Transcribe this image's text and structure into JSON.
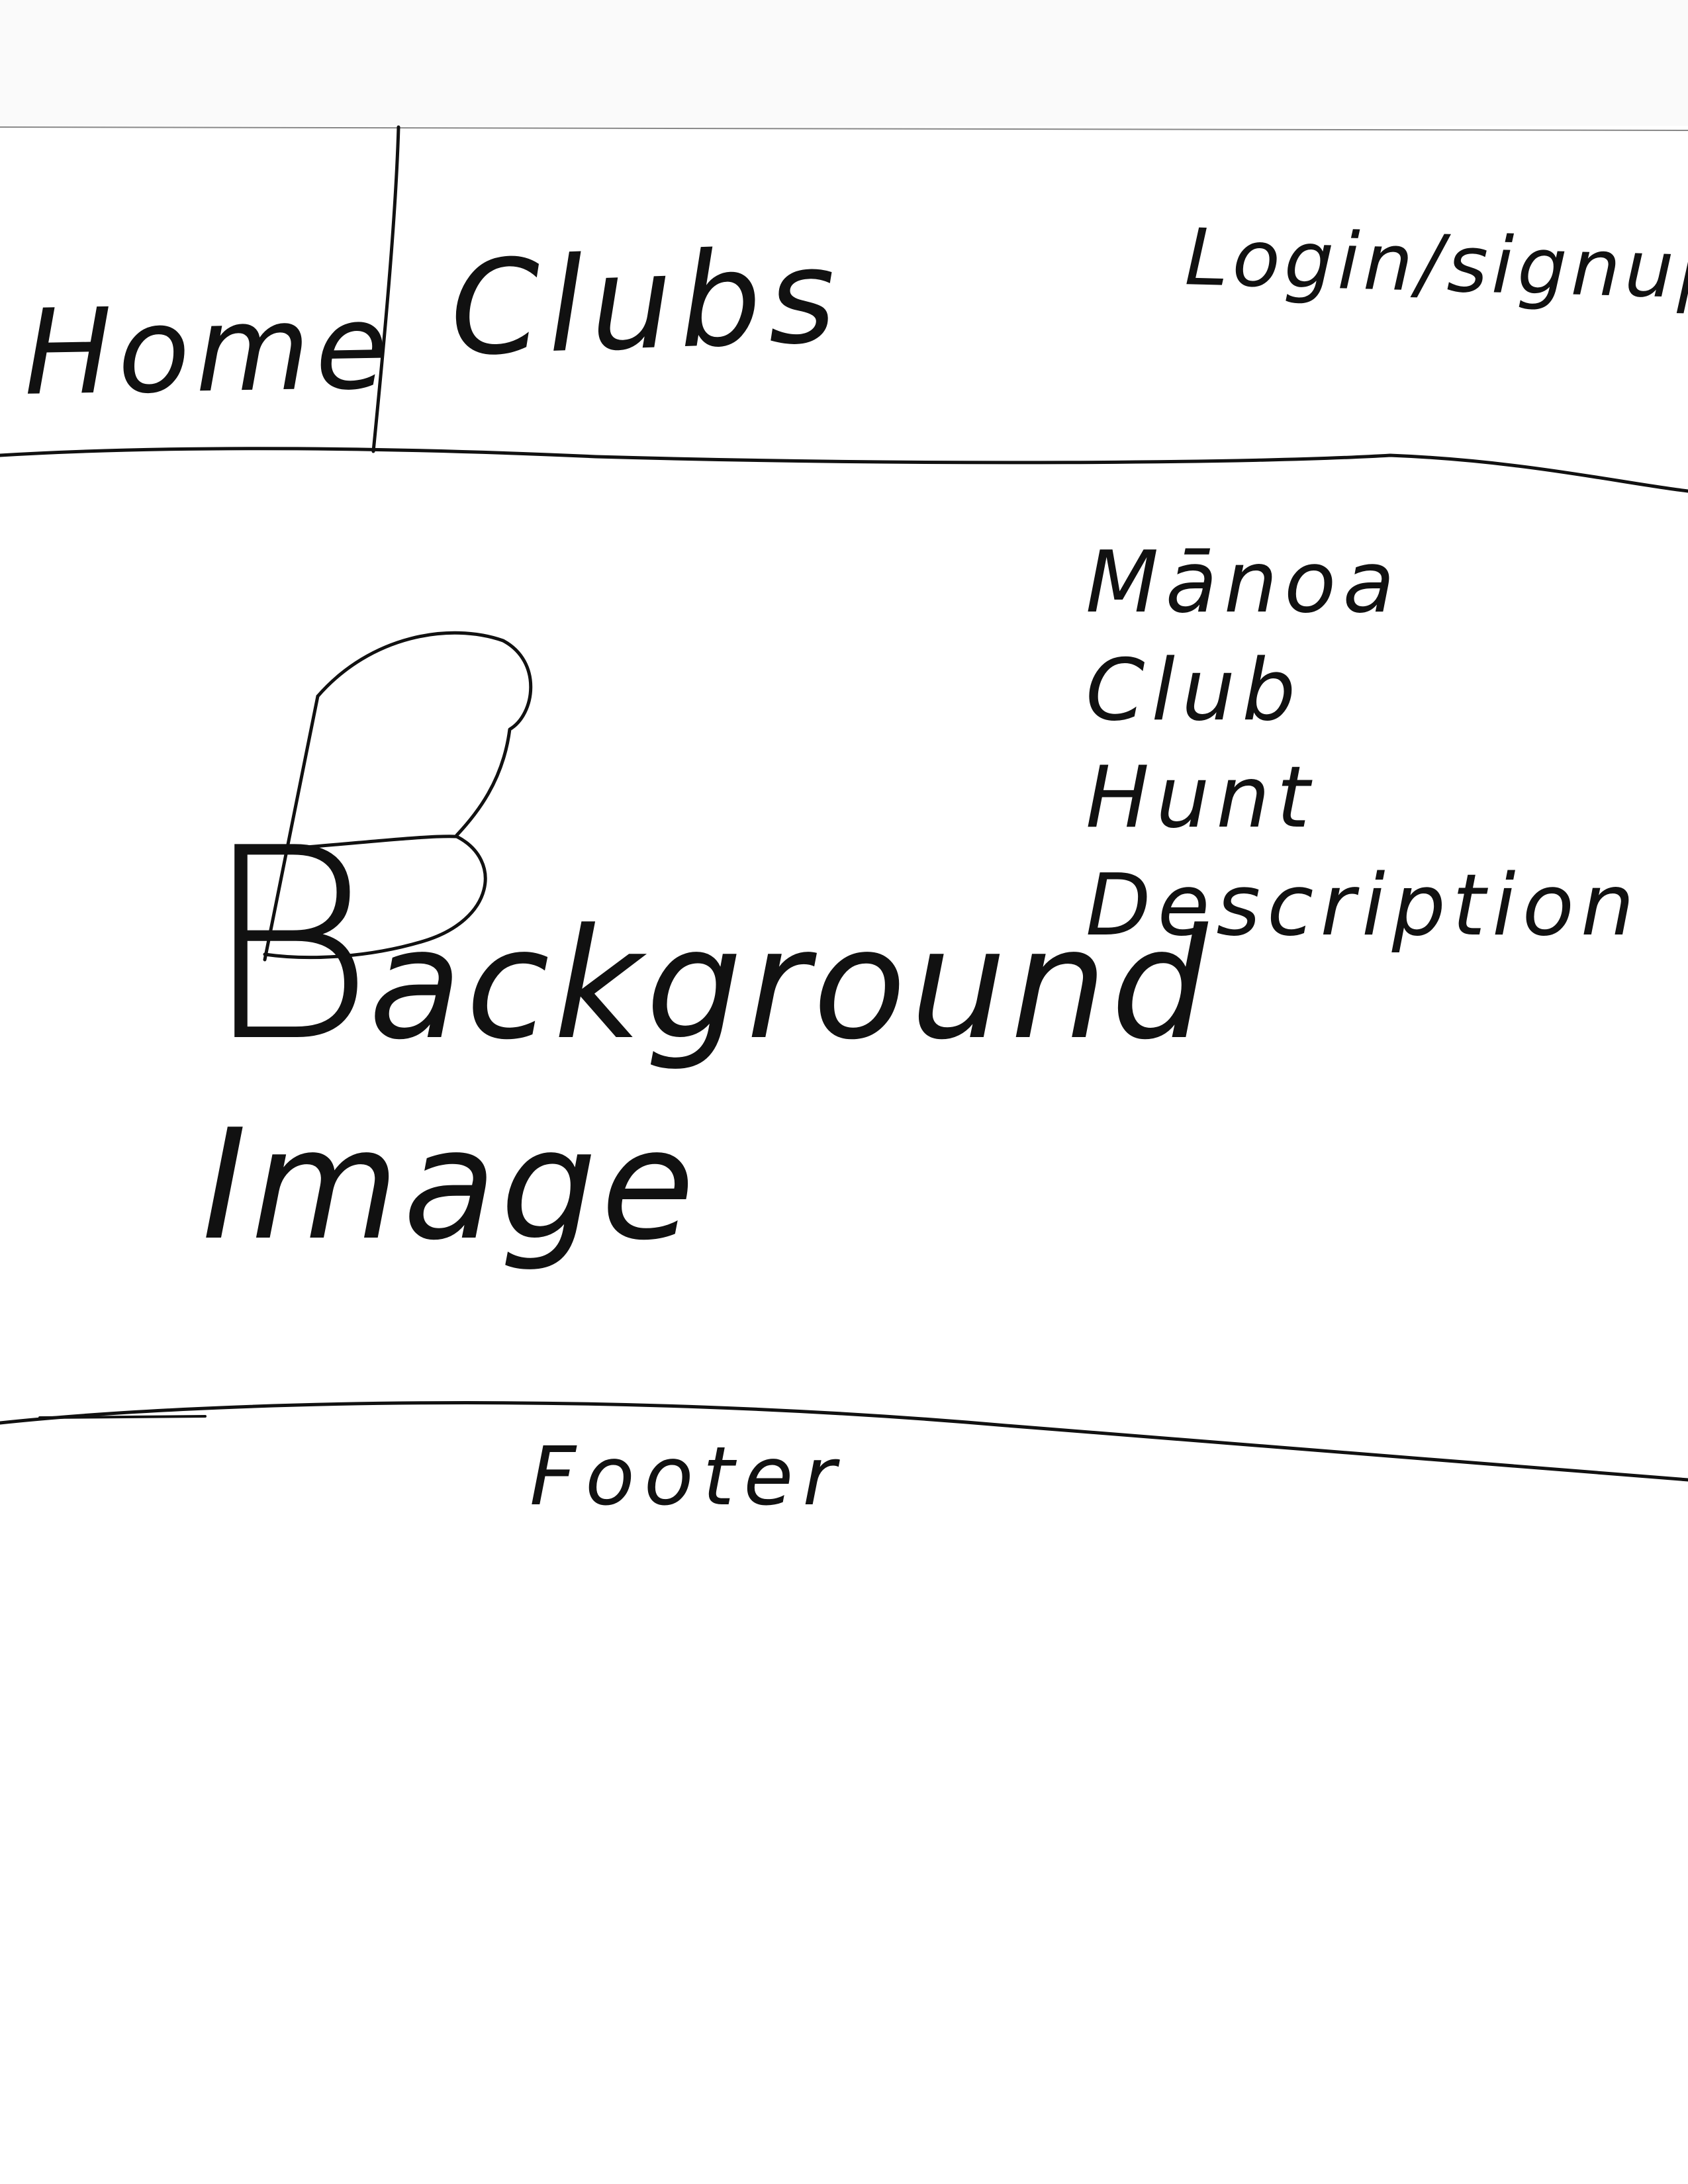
{
  "nav": {
    "home_label": "Home",
    "clubs_label": "Clubs",
    "login_label": "Login/signup"
  },
  "hero": {
    "background_label": "Background Image",
    "background_first_letter": "B",
    "background_rest": "ackground",
    "background_second_word": "Image",
    "description_lines": [
      "Mānoa",
      "Club",
      "Hunt",
      "Description"
    ]
  },
  "footer": {
    "label": "Footer"
  }
}
